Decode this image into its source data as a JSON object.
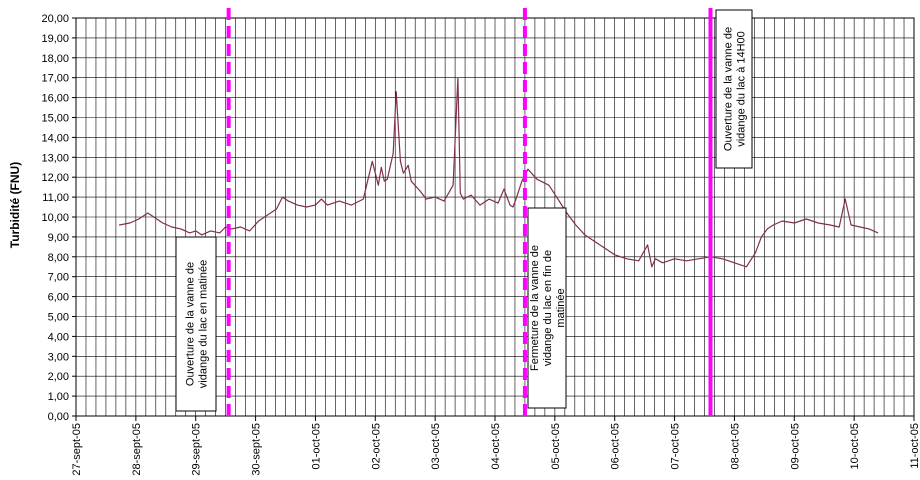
{
  "chart_data": {
    "type": "line",
    "ylabel": "Turbidité (FNU)",
    "xlabel": "",
    "title": "",
    "ylim": [
      0,
      20
    ],
    "y_ticks": [
      "0,00",
      "1,00",
      "2,00",
      "3,00",
      "4,00",
      "5,00",
      "6,00",
      "7,00",
      "8,00",
      "9,00",
      "10,00",
      "11,00",
      "12,00",
      "13,00",
      "14,00",
      "15,00",
      "16,00",
      "17,00",
      "18,00",
      "19,00",
      "20,00"
    ],
    "x_ticks": [
      "27-sept-05",
      "28-sept-05",
      "29-sept-05",
      "30-sept-05",
      "01-oct-05",
      "02-oct-05",
      "03-oct-05",
      "04-oct-05",
      "05-oct-05",
      "06-oct-05",
      "07-oct-05",
      "08-oct-05",
      "09-oct-05",
      "10-oct-05",
      "11-oct-05"
    ],
    "xlim_days": [
      0,
      14
    ],
    "grid": true,
    "series": [
      {
        "color": "#7f2f4f",
        "x": [
          0.72,
          0.9,
          1.05,
          1.2,
          1.3,
          1.45,
          1.6,
          1.75,
          1.9,
          2.0,
          2.1,
          2.25,
          2.4,
          2.5,
          2.6,
          2.75,
          2.9,
          3.05,
          3.2,
          3.35,
          3.45,
          3.55,
          3.7,
          3.85,
          4.0,
          4.1,
          4.2,
          4.4,
          4.6,
          4.8,
          4.95,
          5.05,
          5.1,
          5.15,
          5.2,
          5.3,
          5.35,
          5.42,
          5.47,
          5.55,
          5.6,
          5.75,
          5.85,
          6.0,
          6.15,
          6.3,
          6.38,
          6.42,
          6.47,
          6.6,
          6.75,
          6.9,
          7.05,
          7.15,
          7.25,
          7.3,
          7.35,
          7.45,
          7.55,
          7.7,
          7.9,
          8.05,
          8.2,
          8.35,
          8.5,
          8.7,
          8.85,
          9.0,
          9.2,
          9.4,
          9.55,
          9.62,
          9.68,
          9.8,
          10.0,
          10.2,
          10.4,
          10.6,
          10.8,
          11.0,
          11.2,
          11.35,
          11.45,
          11.55,
          11.65,
          11.8,
          12.0,
          12.2,
          12.4,
          12.6,
          12.75,
          12.85,
          12.95,
          13.1,
          13.25,
          13.4
        ],
        "values": [
          9.6,
          9.7,
          9.9,
          10.2,
          10.0,
          9.7,
          9.5,
          9.4,
          9.2,
          9.3,
          9.1,
          9.3,
          9.2,
          9.5,
          9.4,
          9.5,
          9.3,
          9.8,
          10.1,
          10.4,
          11.0,
          10.8,
          10.6,
          10.5,
          10.6,
          10.9,
          10.6,
          10.8,
          10.6,
          10.9,
          12.8,
          11.6,
          12.5,
          11.8,
          11.9,
          13.2,
          16.3,
          12.8,
          12.2,
          12.6,
          11.8,
          11.3,
          10.9,
          11.0,
          10.8,
          11.6,
          17.0,
          11.2,
          10.9,
          11.1,
          10.6,
          10.9,
          10.7,
          11.4,
          10.6,
          10.5,
          10.9,
          11.8,
          12.4,
          11.9,
          11.6,
          10.9,
          10.2,
          9.6,
          9.1,
          8.7,
          8.4,
          8.1,
          7.9,
          7.8,
          8.6,
          7.5,
          7.9,
          7.7,
          7.9,
          7.8,
          7.9,
          8.0,
          7.9,
          7.7,
          7.5,
          8.2,
          9.0,
          9.4,
          9.6,
          9.8,
          9.7,
          9.9,
          9.7,
          9.6,
          9.5,
          10.9,
          9.6,
          9.5,
          9.4,
          9.2
        ]
      }
    ],
    "markers": [
      {
        "x": 2.55,
        "style": "dashed",
        "color": "#ff00ff",
        "label": "Ouverture de la vanne de vidange du lac en matinée"
      },
      {
        "x": 7.5,
        "style": "dashed",
        "color": "#ff00ff",
        "label": "Fermeture de la vanne de vidange du lac en fin de matinée"
      },
      {
        "x": 10.6,
        "style": "solid",
        "color": "#ff00ff",
        "label": "Ouverture de la vanne de vidange du lac à 14H00"
      }
    ]
  }
}
